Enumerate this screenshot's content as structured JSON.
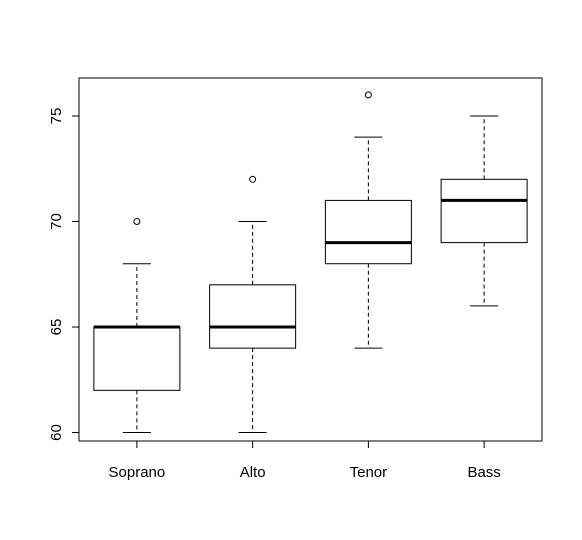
{
  "chart_data": {
    "type": "boxplot",
    "categories": [
      "Soprano",
      "Alto",
      "Tenor",
      "Bass"
    ],
    "boxes": [
      {
        "category": "Soprano",
        "min": 60,
        "q1": 62,
        "median": 65,
        "q3": 65,
        "max": 68,
        "outliers": [
          70
        ]
      },
      {
        "category": "Alto",
        "min": 60,
        "q1": 64,
        "median": 65,
        "q3": 67,
        "max": 70,
        "outliers": [
          72
        ]
      },
      {
        "category": "Tenor",
        "min": 64,
        "q1": 68,
        "median": 69,
        "q3": 71,
        "max": 74,
        "outliers": [
          76
        ]
      },
      {
        "category": "Bass",
        "min": 66,
        "q1": 69,
        "median": 71,
        "q3": 72,
        "max": 75,
        "outliers": []
      }
    ],
    "y_ticks": [
      60,
      65,
      70,
      75
    ],
    "ylim": [
      59.6,
      76.8
    ],
    "title": "",
    "xlabel": "",
    "ylabel": "",
    "grid": false,
    "colors": {
      "stroke": "#000000",
      "fill": "#ffffff"
    }
  }
}
